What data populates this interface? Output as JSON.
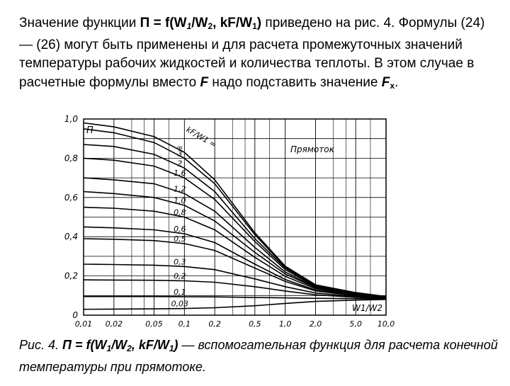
{
  "paragraph": {
    "intro": "Значение функции ",
    "func_prefix": "П = f(W",
    "func_sub1": "1",
    "func_mid": "/W",
    "func_sub2": "2",
    "func_mid2": ", kF/W",
    "func_sub3": "1",
    "func_suffix": ")",
    "rest1": " приведено на рис. 4. Формулы (24) — (26) могут быть применены и для расчета промежуточных значений температуры рабочих жидкостей и количества теплоты. В этом случае в расчетные формулы вместо ",
    "var_f": "F",
    "rest2": " надо подставить значение ",
    "var_fx": "F",
    "var_fx_sub": "x",
    "end": "."
  },
  "caption": {
    "label": "Рис. 4. ",
    "func_prefix": "П = f(W",
    "func_sub1": "1",
    "func_mid": "/W",
    "func_sub2": "2",
    "func_mid2": ", kF/W",
    "func_sub3": "1",
    "func_suffix": ")",
    "rest": " — вспомогательная функция для расчета конечной температуры при прямотоке."
  },
  "chart_data": {
    "type": "line",
    "title": "Прямоток",
    "xlabel": "W1/W2",
    "ylabel": "П",
    "x_scale": "log",
    "x_ticks": [
      0.01,
      0.02,
      0.05,
      0.1,
      0.2,
      0.5,
      1.0,
      2.0,
      5.0,
      10.0
    ],
    "x_tick_labels": [
      "0,01",
      "0,02",
      "0,05",
      "0,1",
      "0,2",
      "0,5",
      "1,0",
      "2,0",
      "5,0",
      "10,0"
    ],
    "y_ticks": [
      0,
      0.2,
      0.4,
      0.6,
      0.8,
      1.0
    ],
    "y_tick_labels": [
      "0",
      "0,2",
      "0,4",
      "0,6",
      "0,8",
      "1,0"
    ],
    "ylim": [
      0,
      1.0
    ],
    "xlim": [
      0.01,
      10.0
    ],
    "grid": true,
    "param_name": "kF/W1",
    "series": [
      {
        "name": "∞",
        "values": [
          0.98,
          0.96,
          0.91,
          0.83,
          0.69,
          0.42,
          0.25,
          0.155,
          0.115,
          0.095
        ]
      },
      {
        "name": "3",
        "values": [
          0.95,
          0.93,
          0.88,
          0.8,
          0.67,
          0.41,
          0.245,
          0.152,
          0.113,
          0.094
        ]
      },
      {
        "name": "2",
        "values": [
          0.87,
          0.86,
          0.82,
          0.75,
          0.63,
          0.39,
          0.24,
          0.15,
          0.112,
          0.093
        ]
      },
      {
        "name": "1,6",
        "values": [
          0.8,
          0.79,
          0.76,
          0.7,
          0.59,
          0.375,
          0.232,
          0.147,
          0.11,
          0.092
        ]
      },
      {
        "name": "1,2",
        "values": [
          0.7,
          0.69,
          0.67,
          0.62,
          0.53,
          0.345,
          0.22,
          0.143,
          0.108,
          0.091
        ]
      },
      {
        "name": "1,0",
        "values": [
          0.63,
          0.62,
          0.6,
          0.56,
          0.48,
          0.32,
          0.21,
          0.14,
          0.106,
          0.09
        ]
      },
      {
        "name": "0,8",
        "values": [
          0.55,
          0.545,
          0.53,
          0.5,
          0.435,
          0.295,
          0.198,
          0.135,
          0.104,
          0.089
        ]
      },
      {
        "name": "0,6",
        "values": [
          0.45,
          0.445,
          0.435,
          0.415,
          0.37,
          0.26,
          0.182,
          0.128,
          0.101,
          0.088
        ]
      },
      {
        "name": "0,5",
        "values": [
          0.39,
          0.387,
          0.38,
          0.365,
          0.33,
          0.24,
          0.172,
          0.124,
          0.099,
          0.087
        ]
      },
      {
        "name": "0,3",
        "values": [
          0.26,
          0.258,
          0.255,
          0.248,
          0.232,
          0.185,
          0.145,
          0.113,
          0.095,
          0.086
        ]
      },
      {
        "name": "0,2",
        "values": [
          0.18,
          0.179,
          0.178,
          0.175,
          0.168,
          0.145,
          0.123,
          0.104,
          0.091,
          0.085
        ]
      },
      {
        "name": "0,1",
        "values": [
          0.095,
          0.095,
          0.095,
          0.094,
          0.093,
          0.09,
          0.088,
          0.086,
          0.084,
          0.083
        ]
      },
      {
        "name": "0,03",
        "values": [
          0.03,
          0.031,
          0.032,
          0.034,
          0.038,
          0.048,
          0.06,
          0.07,
          0.077,
          0.08
        ]
      }
    ]
  }
}
